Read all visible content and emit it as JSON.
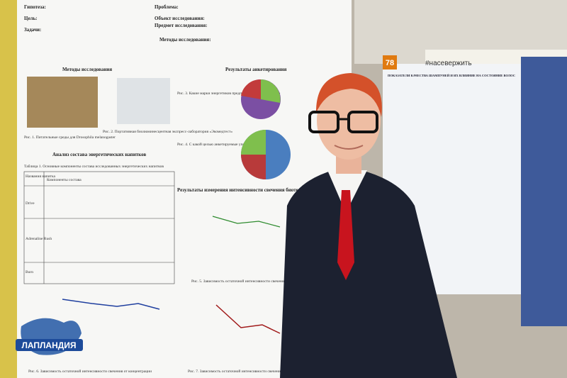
{
  "poster_left": {
    "lines": [
      "Гипотеза:",
      "Цель:",
      "Задачи:",
      "Проблема:",
      "Объект исследования:",
      "Предмет исследования:",
      "Методы исследования:"
    ],
    "headings": [
      "Методы исследования",
      "Результаты анкетирования",
      "Анализ состава энергетических напитков",
      "Результаты измерения интенсивности свечения биотестов в ..."
    ],
    "captions": [
      "Рис. 1. Питательные среды для Drosophila melanogaster",
      "Рис. 2. Портативная биолюминесцентная экспресс-лаборатория «Экомедтест»",
      "Рис. 3. Какие марки энергетиков предпочитают анкетируемые",
      "Рис. 4. С какой целью анкетируемые употребляют энергетики",
      "Рис. 5. Зависимость остаточной интенсивности свечения ...",
      "Рис. 6. Зависимость остаточной интенсивности свечения от концентрации",
      "Рис. 7. Зависимость остаточной интенсивности свечения ..."
    ],
    "table": {
      "caption": "Таблица 1. Основные компоненты состава исследованных энергетических напитков",
      "header": [
        "Названия напитка",
        "Компоненты состава"
      ],
      "rows": [
        "Drive",
        "Adrenaline Rush",
        "Burn"
      ]
    }
  },
  "poster_right": {
    "title": "ПОКАЗАТЕЛИ КАЧЕСТВА ШАМПУНЕЙ И ИХ ВЛИЯНИЕ НА СОСТОЯНИЕ ВОЛОС"
  },
  "booth": {
    "number": "78",
    "hashtag": "#насевержить"
  },
  "watermark": "ЛАПЛАНДИЯ"
}
